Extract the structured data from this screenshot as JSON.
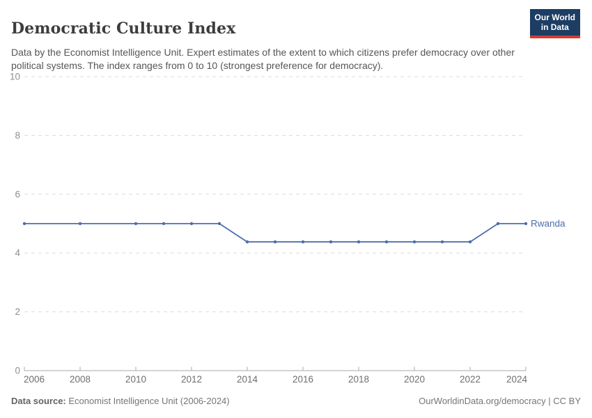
{
  "header": {
    "title": "Democratic Culture Index",
    "subtitle": "Data by the Economist Intelligence Unit. Expert estimates of the extent to which citizens prefer democracy over other political systems. The index ranges from 0 to 10 (strongest preference for democracy).",
    "logo": {
      "line1": "Our World",
      "line2": "in Data",
      "bg_color": "#1d3d63",
      "accent_color": "#d73a34"
    }
  },
  "chart_data": {
    "type": "line",
    "title": "Democratic Culture Index",
    "xlabel": "",
    "ylabel": "",
    "xlim": [
      2006,
      2024
    ],
    "ylim": [
      0,
      10
    ],
    "xticks": [
      2006,
      2008,
      2010,
      2012,
      2014,
      2016,
      2018,
      2020,
      2022,
      2024
    ],
    "yticks": [
      0,
      2,
      4,
      6,
      8,
      10
    ],
    "grid": "horizontal-dashed",
    "grid_color": "#dcdcdc",
    "axis_color": "#a8a8a8",
    "ytick_label_color": "#8f8f8f",
    "xtick_label_color": "#6e6e6e",
    "legend": "label-at-line-end",
    "series": [
      {
        "name": "Rwanda",
        "color": "#4c6ea9",
        "points": [
          [
            2006,
            5.0
          ],
          [
            2008,
            5.0
          ],
          [
            2010,
            5.0
          ],
          [
            2011,
            5.0
          ],
          [
            2012,
            5.0
          ],
          [
            2013,
            5.0
          ],
          [
            2014,
            4.38
          ],
          [
            2015,
            4.38
          ],
          [
            2016,
            4.38
          ],
          [
            2017,
            4.38
          ],
          [
            2018,
            4.38
          ],
          [
            2019,
            4.38
          ],
          [
            2020,
            4.38
          ],
          [
            2021,
            4.38
          ],
          [
            2022,
            4.38
          ],
          [
            2023,
            5.0
          ],
          [
            2024,
            5.0
          ]
        ]
      }
    ]
  },
  "footer": {
    "source_label": "Data source:",
    "source_text": "Economist Intelligence Unit (2006-2024)",
    "link_text": "OurWorldinData.org/democracy | CC BY"
  }
}
